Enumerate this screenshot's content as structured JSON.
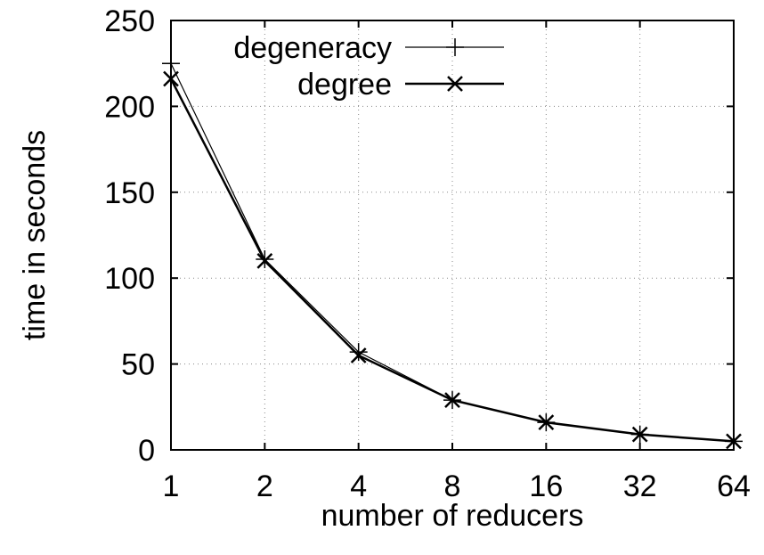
{
  "chart_data": {
    "type": "line",
    "xlabel": "number of reducers",
    "ylabel": "time in seconds",
    "x_scale": "log2",
    "categories": [
      "1",
      "2",
      "4",
      "8",
      "16",
      "32",
      "64"
    ],
    "x": [
      1,
      2,
      4,
      8,
      16,
      32,
      64
    ],
    "ylim": [
      0,
      250
    ],
    "yticks": [
      "0",
      "50",
      "100",
      "150",
      "200",
      "250"
    ],
    "legend_position": "top-right",
    "grid": true,
    "series": [
      {
        "name": "degeneracy",
        "marker": "plus",
        "values": [
          225,
          111,
          57,
          29,
          16,
          9,
          5
        ]
      },
      {
        "name": "degree",
        "marker": "x",
        "values": [
          216,
          110,
          55,
          29,
          16,
          9,
          5
        ]
      }
    ]
  },
  "colors": {
    "line": "#000000",
    "grid": "#888888"
  }
}
